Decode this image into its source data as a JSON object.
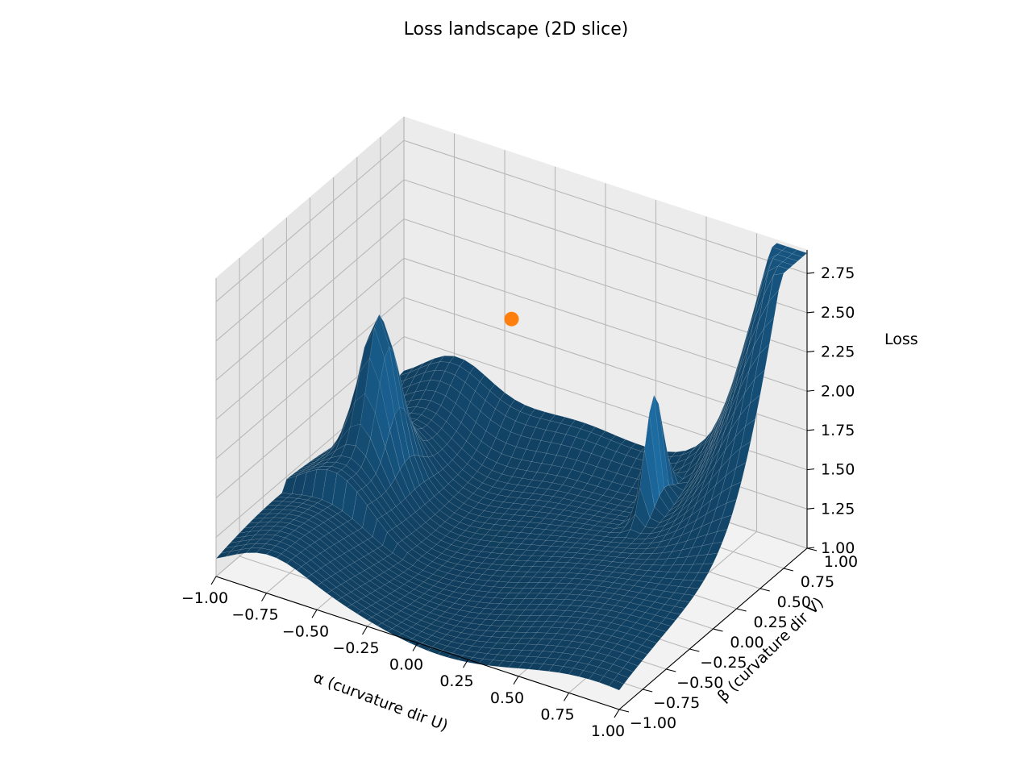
{
  "chart_data": {
    "type": "surface",
    "title": "Loss landscape (2D slice)",
    "xlabel": "α (curvature dir U)",
    "ylabel": "β (curvature dir V)",
    "zlabel": "Loss",
    "xlim": [
      -1.0,
      1.0
    ],
    "ylim": [
      -1.0,
      1.0
    ],
    "zlim": [
      1.0,
      2.9
    ],
    "x_ticks": [
      "−1.00",
      "−0.75",
      "−0.50",
      "−0.25",
      "0.00",
      "0.25",
      "0.50",
      "0.75",
      "1.00"
    ],
    "y_ticks": [
      "−1.00",
      "−0.75",
      "−0.50",
      "−0.25",
      "0.00",
      "0.25",
      "0.50",
      "0.75",
      "1.00"
    ],
    "z_ticks": [
      "1.00",
      "1.25",
      "1.50",
      "1.75",
      "2.00",
      "2.25",
      "2.50",
      "2.75"
    ],
    "surface_color": "#1f77b4",
    "marker_color": "#ff7f0e",
    "marker_point": {
      "x": 0.0,
      "y": 0.0,
      "z": 2.55
    },
    "grid": true
  }
}
